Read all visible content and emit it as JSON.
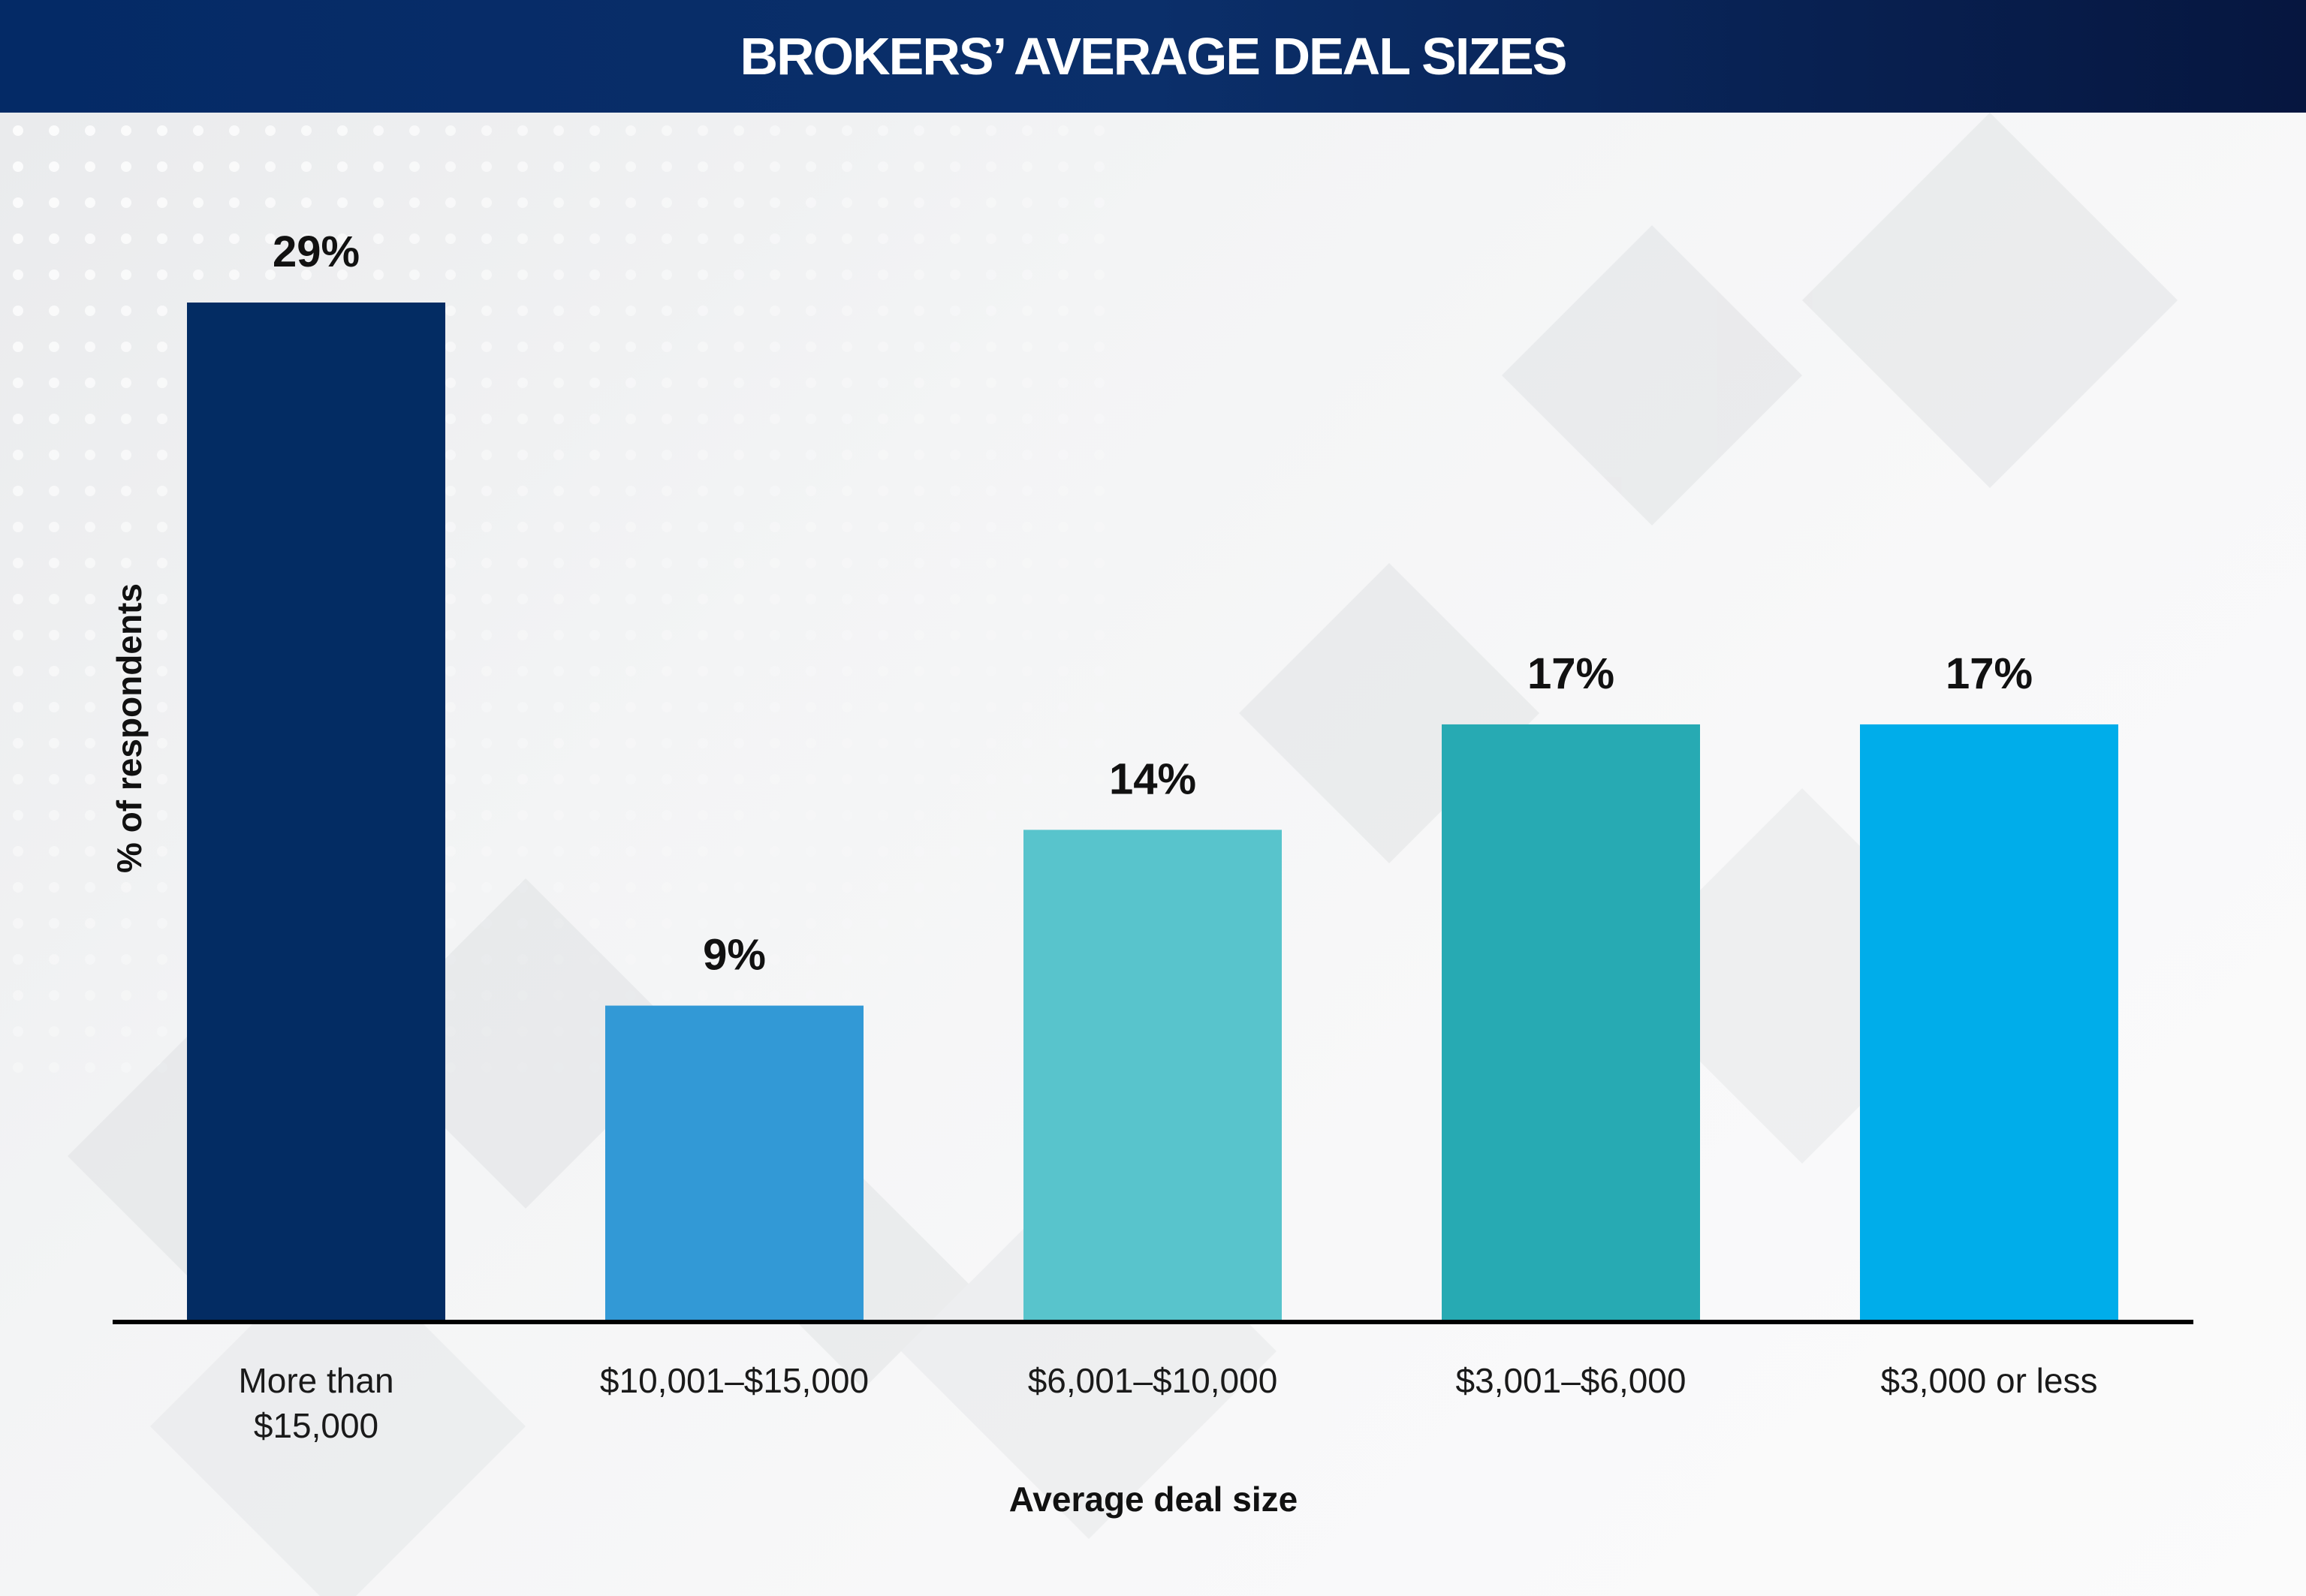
{
  "header": {
    "title": "BROKERS’ AVERAGE DEAL SIZES"
  },
  "chart_data": {
    "type": "bar",
    "title": "BROKERS’ AVERAGE DEAL SIZES",
    "xlabel": "Average deal size",
    "ylabel": "% of respondents",
    "ylim": [
      0,
      29
    ],
    "grid": false,
    "categories": [
      [
        "More than",
        "$15,000"
      ],
      [
        "$10,001–$15,000"
      ],
      [
        "$6,001–$10,000"
      ],
      [
        "$3,001–$6,000"
      ],
      [
        "$3,000 or less"
      ]
    ],
    "values": [
      29,
      9,
      14,
      17,
      17
    ],
    "value_labels": [
      "29%",
      "9%",
      "14%",
      "17%",
      "17%"
    ],
    "colors": [
      "#032c63",
      "#3299d6",
      "#58c4cc",
      "#27aab3",
      "#00adea"
    ]
  }
}
